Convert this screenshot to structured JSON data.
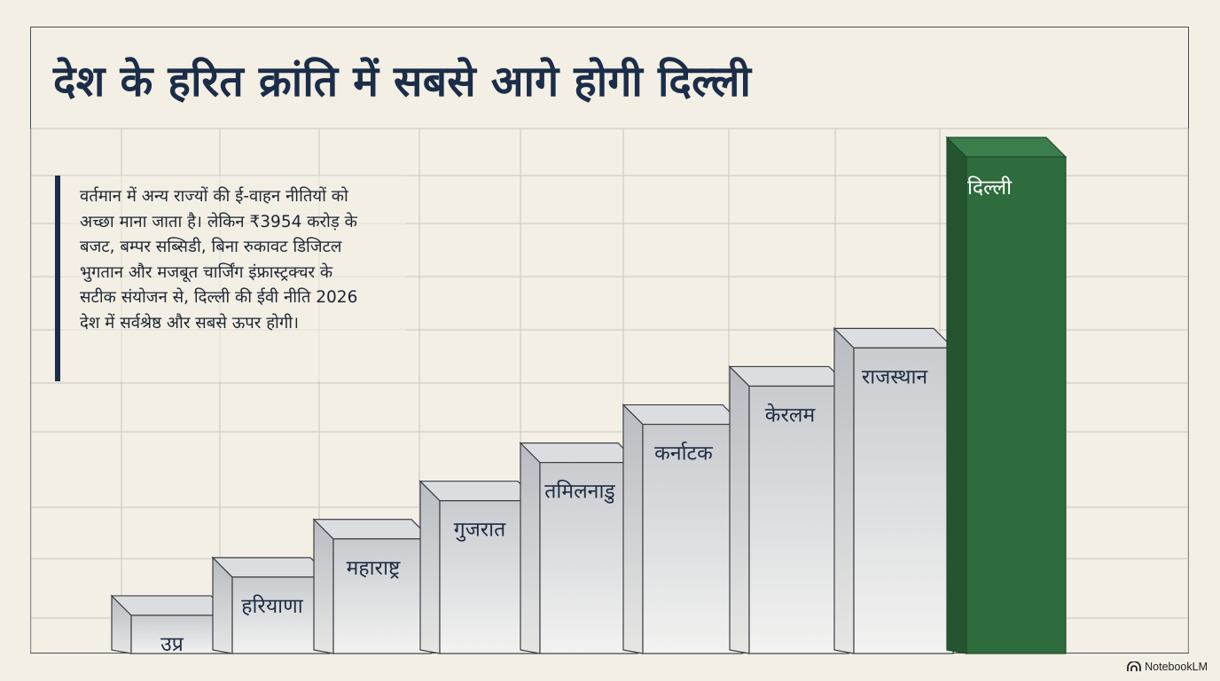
{
  "title": "देश के हरित क्रांति में सबसे आगे होगी दिल्ली",
  "callout": {
    "lines": [
      "वर्तमान में अन्य राज्यों की ई-वाहन नीतियों को",
      "अच्छा माना जाता है। लेकिन ₹3954 करोड़ के",
      "बजट, बम्पर सब्सिडी, बिना रुकावट डिजिटल",
      "भुगतान और मजबूत चार्जिंग इंफ्रास्ट्रक्चर के",
      "सटीक संयोजन से, दिल्ली की ईवी नीति 2026",
      "देश में सर्वश्रेष्ठ और सबसे ऊपर होगी।"
    ]
  },
  "chart_data": {
    "type": "bar",
    "categories": [
      "उप्र",
      "हरियाणा",
      "महाराष्ट्र",
      "गुजरात",
      "तमिलनाडु",
      "कर्नाटक",
      "केरलम",
      "राजस्थान",
      "दिल्ली"
    ],
    "values": [
      1,
      2,
      3,
      4,
      5,
      6,
      7,
      8,
      13
    ],
    "highlight": "दिल्ली",
    "colors": {
      "bar": "#d4d6d9",
      "highlight": "#2e6b3d",
      "label": "#1f2d44"
    }
  },
  "brand": {
    "name": "NotebookLM",
    "icon": "notebooklm-logo-icon"
  }
}
